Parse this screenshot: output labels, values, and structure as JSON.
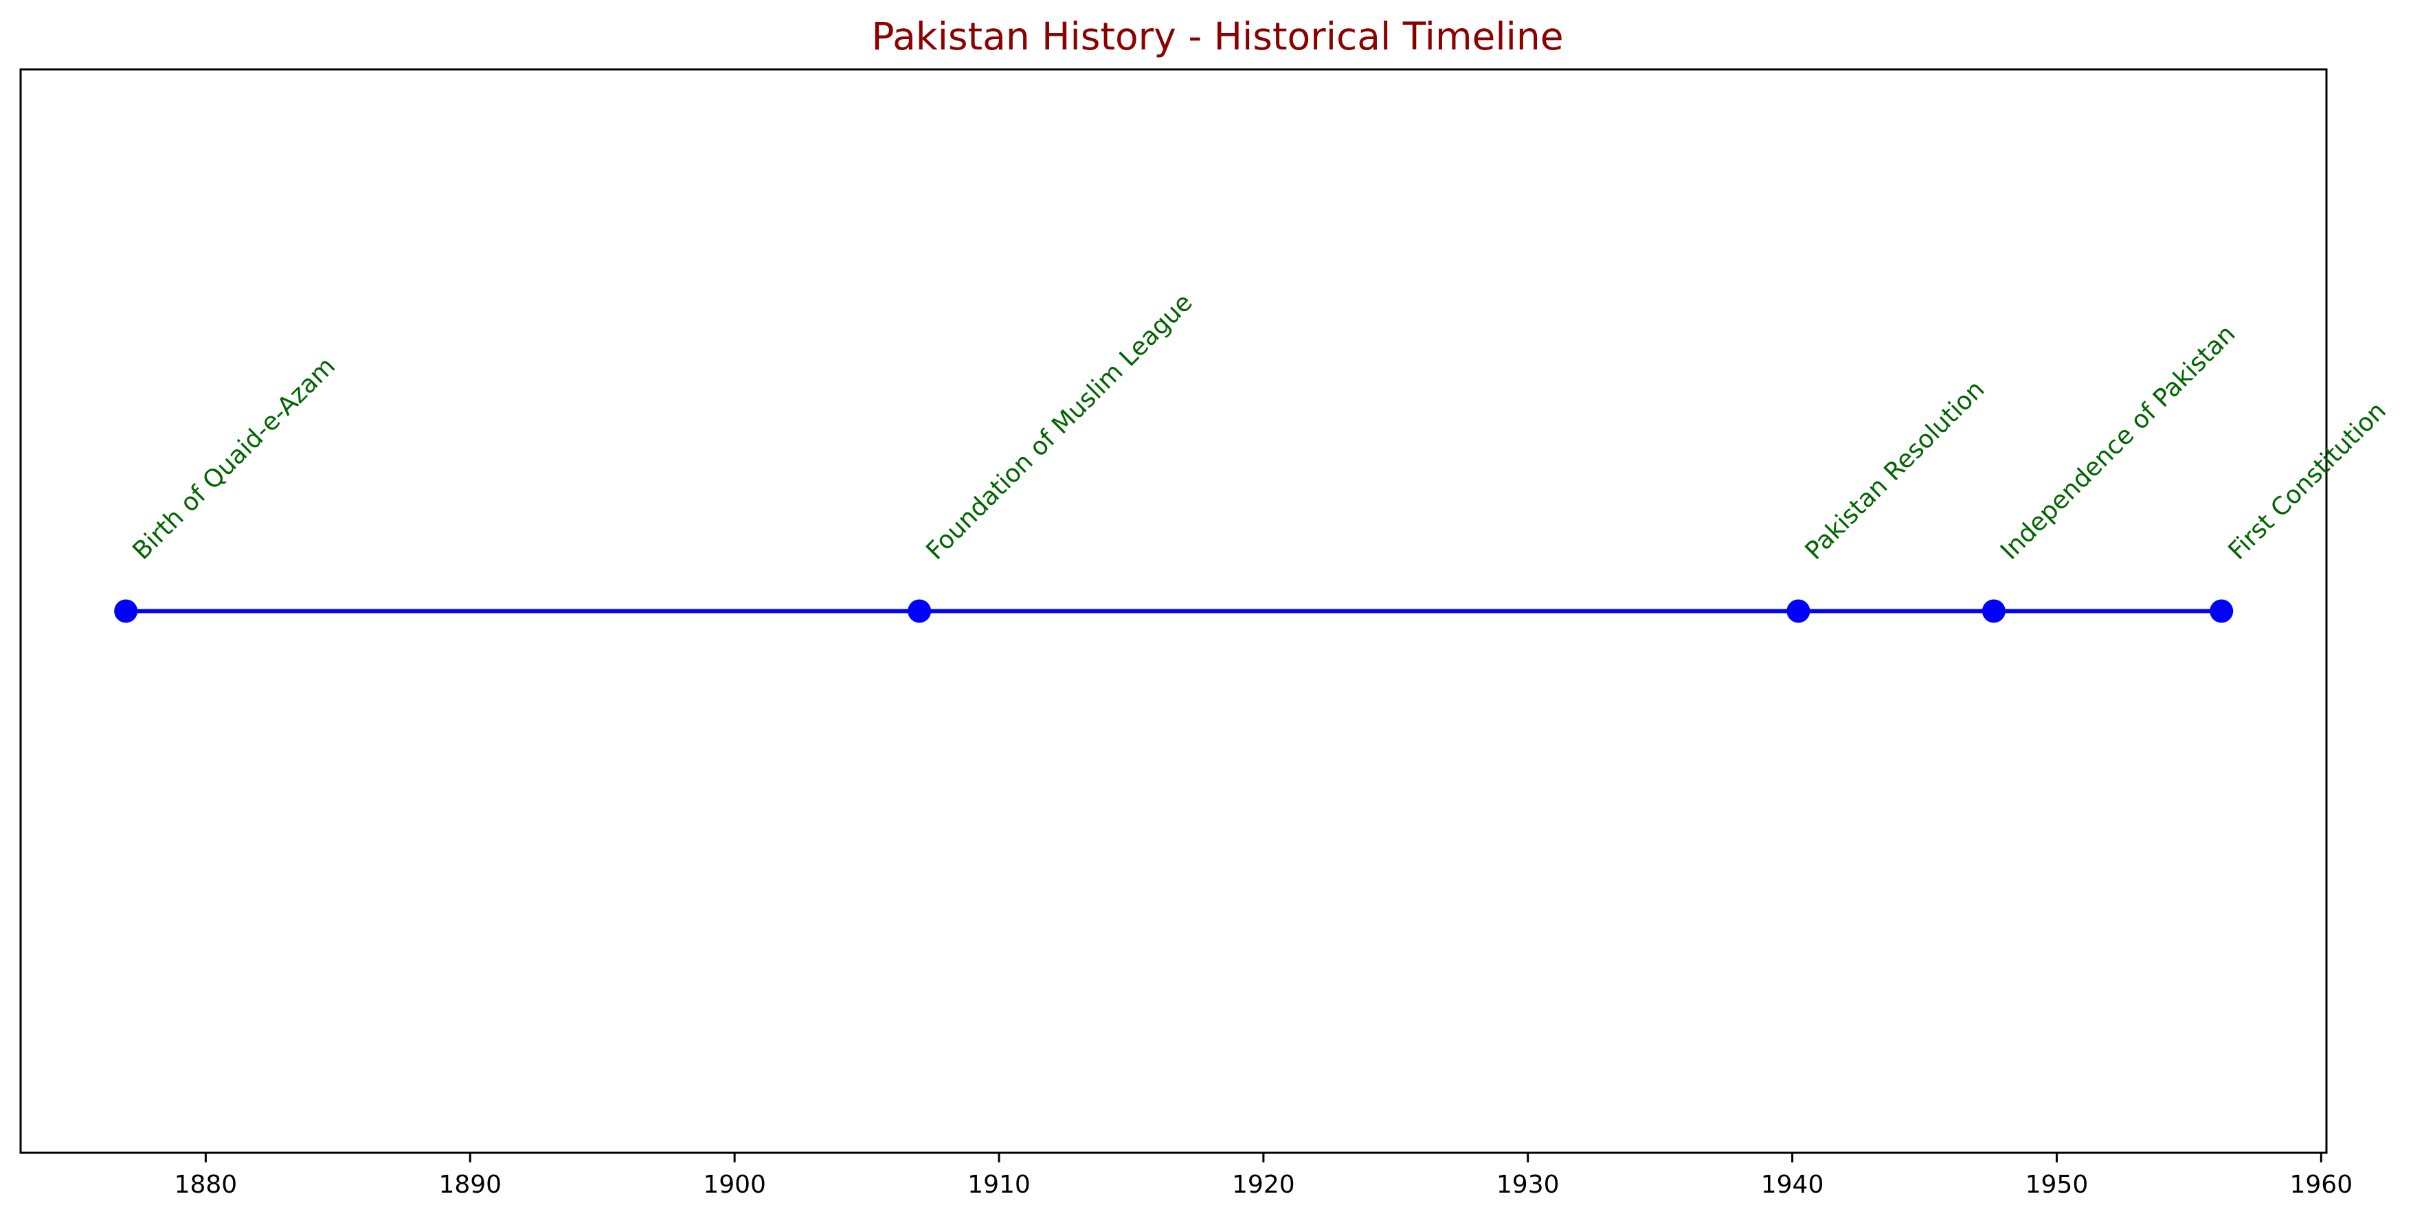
{
  "chart_data": {
    "type": "line",
    "title": "Pakistan History - Historical Timeline",
    "xlabel": "",
    "ylabel": "",
    "xlim": [
      1873,
      1960.2
    ],
    "x_ticks": [
      1880,
      1890,
      1900,
      1910,
      1920,
      1930,
      1940,
      1950,
      1960
    ],
    "events": [
      {
        "year": 1876.98,
        "label": "Birth of Quaid-e-Azam"
      },
      {
        "year": 1906.99,
        "label": "Foundation of Muslim League"
      },
      {
        "year": 1940.23,
        "label": "Pakistan Resolution"
      },
      {
        "year": 1947.62,
        "label": "Independence of Pakistan"
      },
      {
        "year": 1956.23,
        "label": "First Constitution"
      }
    ],
    "grid": false,
    "colors": {
      "title": "#8b0000",
      "line": "#0000ff",
      "marker": "#0000ff",
      "label": "#006400",
      "axis": "#000000"
    }
  }
}
